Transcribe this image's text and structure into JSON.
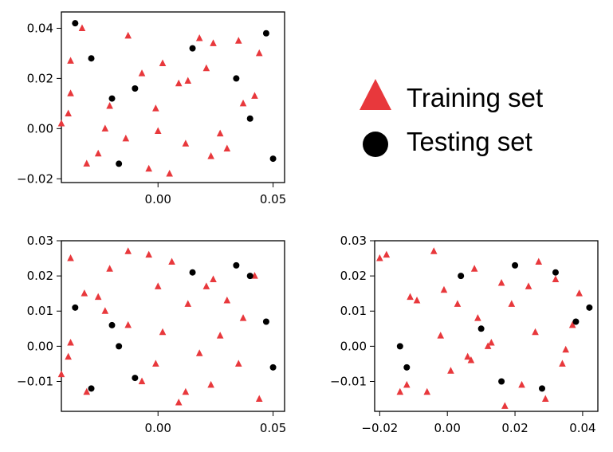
{
  "legend": {
    "items": [
      {
        "label": "Training set",
        "marker": "triangle",
        "color": "#e8383c"
      },
      {
        "label": "Testing set",
        "marker": "circle",
        "color": "#000000"
      }
    ]
  },
  "chart_data": [
    {
      "type": "scatter",
      "position": "top-left",
      "xlim": [
        -0.042,
        0.055
      ],
      "ylim": [
        -0.0215,
        0.0465
      ],
      "xticks": [
        {
          "v": 0.0,
          "label": "0.00"
        },
        {
          "v": 0.05,
          "label": "0.05"
        }
      ],
      "yticks": [
        {
          "v": -0.02,
          "label": "−0.02"
        },
        {
          "v": 0.0,
          "label": "0.00"
        },
        {
          "v": 0.02,
          "label": "0.02"
        },
        {
          "v": 0.04,
          "label": "0.04"
        }
      ],
      "series": [
        {
          "marker": "triangle",
          "color": "#e8383c",
          "points": [
            [
              -0.033,
              0.04
            ],
            [
              -0.038,
              0.027
            ],
            [
              -0.038,
              0.014
            ],
            [
              -0.039,
              0.006
            ],
            [
              -0.042,
              0.002
            ],
            [
              -0.031,
              -0.014
            ],
            [
              -0.026,
              -0.01
            ],
            [
              -0.023,
              -0.0
            ],
            [
              -0.021,
              0.009
            ],
            [
              -0.013,
              0.037
            ],
            [
              -0.014,
              -0.004
            ],
            [
              -0.007,
              0.022
            ],
            [
              -0.004,
              -0.016
            ],
            [
              -0.001,
              0.008
            ],
            [
              0.0,
              -0.001
            ],
            [
              0.002,
              0.026
            ],
            [
              0.005,
              -0.018
            ],
            [
              0.009,
              0.018
            ],
            [
              0.012,
              -0.006
            ],
            [
              0.013,
              0.019
            ],
            [
              0.018,
              0.036
            ],
            [
              0.021,
              0.024
            ],
            [
              0.023,
              -0.011
            ],
            [
              0.024,
              0.034
            ],
            [
              0.027,
              -0.002
            ],
            [
              0.03,
              -0.008
            ],
            [
              0.035,
              0.035
            ],
            [
              0.037,
              0.01
            ],
            [
              0.042,
              0.013
            ],
            [
              0.044,
              0.03
            ]
          ]
        },
        {
          "marker": "circle",
          "color": "#000000",
          "points": [
            [
              -0.036,
              0.042
            ],
            [
              -0.029,
              0.028
            ],
            [
              -0.02,
              0.012
            ],
            [
              -0.017,
              -0.014
            ],
            [
              -0.01,
              0.016
            ],
            [
              0.015,
              0.032
            ],
            [
              0.034,
              0.02
            ],
            [
              0.04,
              0.004
            ],
            [
              0.047,
              0.038
            ],
            [
              0.05,
              -0.012
            ]
          ]
        }
      ]
    },
    {
      "type": "scatter",
      "position": "bottom-left",
      "xlim": [
        -0.042,
        0.055
      ],
      "ylim": [
        -0.0185,
        0.03
      ],
      "xticks": [
        {
          "v": 0.0,
          "label": "0.00"
        },
        {
          "v": 0.05,
          "label": "0.05"
        }
      ],
      "yticks": [
        {
          "v": -0.01,
          "label": "−0.01"
        },
        {
          "v": 0.0,
          "label": "0.00"
        },
        {
          "v": 0.01,
          "label": "0.01"
        },
        {
          "v": 0.02,
          "label": "0.02"
        },
        {
          "v": 0.03,
          "label": "0.03"
        }
      ],
      "series": [
        {
          "marker": "triangle",
          "color": "#e8383c",
          "points": [
            [
              -0.038,
              0.025
            ],
            [
              -0.032,
              0.015
            ],
            [
              -0.038,
              0.001
            ],
            [
              -0.039,
              -0.003
            ],
            [
              -0.042,
              -0.008
            ],
            [
              -0.031,
              -0.013
            ],
            [
              -0.026,
              0.014
            ],
            [
              -0.023,
              0.01
            ],
            [
              -0.021,
              0.022
            ],
            [
              -0.013,
              0.027
            ],
            [
              -0.013,
              0.006
            ],
            [
              -0.007,
              -0.01
            ],
            [
              -0.004,
              0.026
            ],
            [
              -0.001,
              -0.005
            ],
            [
              0.0,
              0.017
            ],
            [
              0.002,
              0.004
            ],
            [
              0.006,
              0.024
            ],
            [
              0.009,
              -0.016
            ],
            [
              0.012,
              -0.013
            ],
            [
              0.013,
              0.012
            ],
            [
              0.018,
              -0.002
            ],
            [
              0.021,
              0.017
            ],
            [
              0.023,
              -0.011
            ],
            [
              0.024,
              0.019
            ],
            [
              0.027,
              0.003
            ],
            [
              0.03,
              0.013
            ],
            [
              0.035,
              -0.005
            ],
            [
              0.037,
              0.008
            ],
            [
              0.042,
              0.02
            ],
            [
              0.044,
              -0.015
            ]
          ]
        },
        {
          "marker": "circle",
          "color": "#000000",
          "points": [
            [
              -0.036,
              0.011
            ],
            [
              -0.029,
              -0.012
            ],
            [
              -0.02,
              0.006
            ],
            [
              -0.017,
              -0.0
            ],
            [
              -0.01,
              -0.009
            ],
            [
              0.015,
              0.021
            ],
            [
              0.034,
              0.023
            ],
            [
              0.04,
              0.02
            ],
            [
              0.047,
              0.007
            ],
            [
              0.05,
              -0.006
            ]
          ]
        }
      ]
    },
    {
      "type": "scatter",
      "position": "bottom-right",
      "xlim": [
        -0.0215,
        0.0445
      ],
      "ylim": [
        -0.0185,
        0.03
      ],
      "xticks": [
        {
          "v": -0.02,
          "label": "−0.02"
        },
        {
          "v": 0.0,
          "label": "0.00"
        },
        {
          "v": 0.02,
          "label": "0.02"
        },
        {
          "v": 0.04,
          "label": "0.04"
        }
      ],
      "yticks": [
        {
          "v": -0.01,
          "label": "−0.01"
        },
        {
          "v": 0.0,
          "label": "0.00"
        },
        {
          "v": 0.01,
          "label": "0.01"
        },
        {
          "v": 0.02,
          "label": "0.02"
        },
        {
          "v": 0.03,
          "label": "0.03"
        }
      ],
      "series": [
        {
          "marker": "triangle",
          "color": "#e8383c",
          "points": [
            [
              -0.02,
              0.025
            ],
            [
              -0.018,
              0.026
            ],
            [
              -0.014,
              -0.013
            ],
            [
              -0.012,
              -0.011
            ],
            [
              -0.011,
              0.014
            ],
            [
              -0.009,
              0.013
            ],
            [
              -0.006,
              -0.013
            ],
            [
              -0.004,
              0.027
            ],
            [
              -0.002,
              0.003
            ],
            [
              -0.001,
              0.016
            ],
            [
              0.001,
              -0.007
            ],
            [
              0.003,
              0.012
            ],
            [
              0.006,
              -0.003
            ],
            [
              0.007,
              -0.004
            ],
            [
              0.008,
              0.022
            ],
            [
              0.009,
              0.008
            ],
            [
              0.012,
              0.0
            ],
            [
              0.013,
              0.001
            ],
            [
              0.016,
              0.018
            ],
            [
              0.017,
              -0.017
            ],
            [
              0.019,
              0.012
            ],
            [
              0.022,
              -0.011
            ],
            [
              0.024,
              0.017
            ],
            [
              0.026,
              0.004
            ],
            [
              0.027,
              0.024
            ],
            [
              0.029,
              -0.015
            ],
            [
              0.032,
              0.019
            ],
            [
              0.034,
              -0.005
            ],
            [
              0.035,
              -0.001
            ],
            [
              0.037,
              0.006
            ],
            [
              0.039,
              0.015
            ]
          ]
        },
        {
          "marker": "circle",
          "color": "#000000",
          "points": [
            [
              -0.014,
              -0.0
            ],
            [
              -0.012,
              -0.006
            ],
            [
              0.004,
              0.02
            ],
            [
              0.01,
              0.005
            ],
            [
              0.016,
              -0.01
            ],
            [
              0.02,
              0.023
            ],
            [
              0.028,
              -0.012
            ],
            [
              0.032,
              0.021
            ],
            [
              0.038,
              0.007
            ],
            [
              0.042,
              0.011
            ]
          ]
        }
      ]
    }
  ]
}
